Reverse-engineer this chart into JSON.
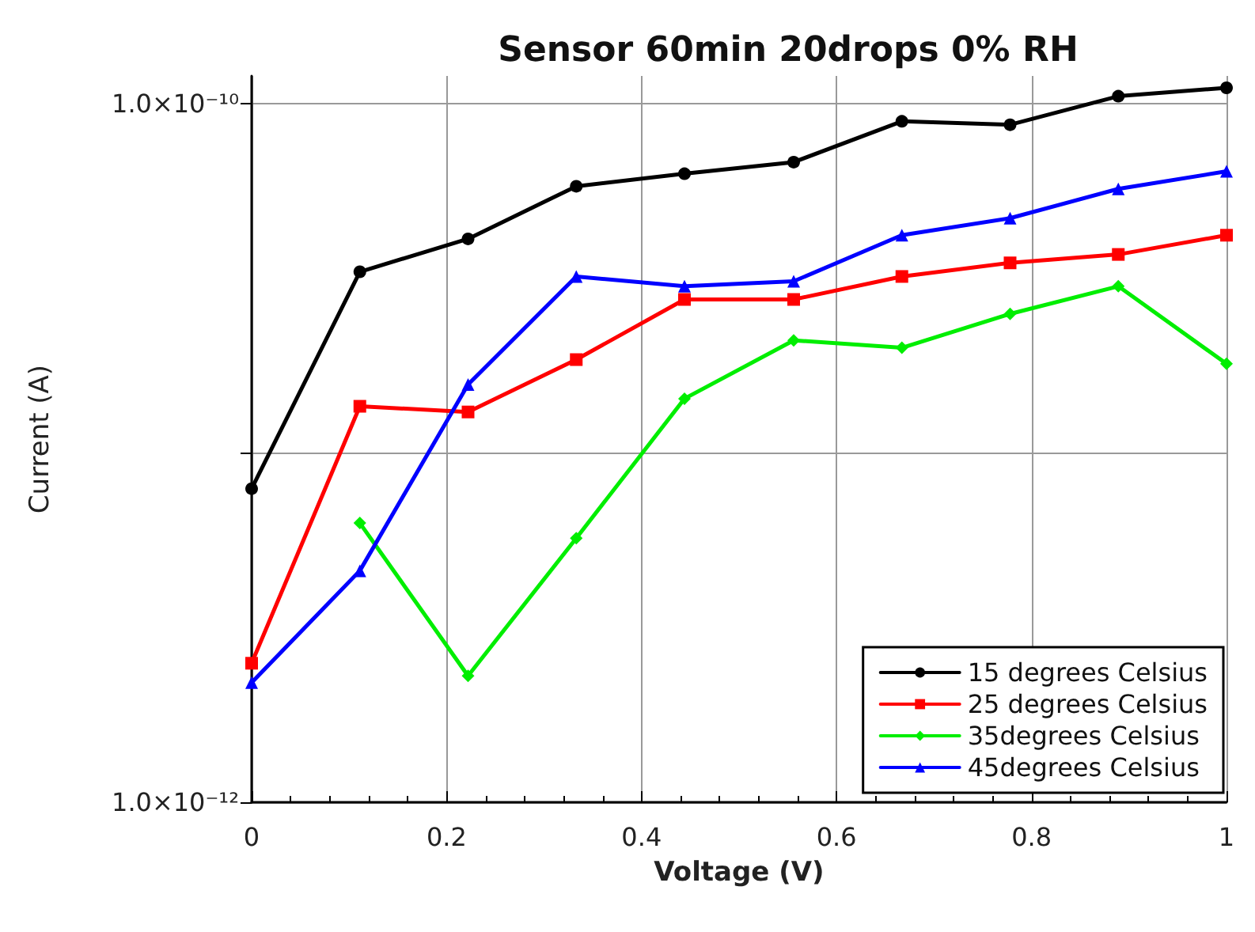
{
  "chart_data": {
    "type": "line",
    "title": "Sensor 60min 20drops 0% RH",
    "xlabel": "Voltage (V)",
    "ylabel": "Current (A)",
    "x": [
      0,
      0.111,
      0.222,
      0.333,
      0.444,
      0.556,
      0.667,
      0.778,
      0.889,
      1.0
    ],
    "series": [
      {
        "name": "15 degrees Celsius",
        "color": "#000000",
        "marker": "circle",
        "values": [
          7.9e-12,
          3.3e-11,
          4.1e-11,
          5.8e-11,
          6.3e-11,
          6.8e-11,
          8.9e-11,
          8.7e-11,
          1.05e-10,
          1.11e-10
        ]
      },
      {
        "name": "25 degrees Celsius",
        "color": "#ff0000",
        "marker": "square",
        "values": [
          2.5e-12,
          1.36e-11,
          1.31e-11,
          1.85e-11,
          2.75e-11,
          2.75e-11,
          3.2e-11,
          3.5e-11,
          3.7e-11,
          4.2e-11
        ]
      },
      {
        "name": "35degrees Celsius",
        "color": "#00ee00",
        "marker": "diamond",
        "values": [
          null,
          6.3e-12,
          2.3e-12,
          5.7e-12,
          1.43e-11,
          2.1e-11,
          2e-11,
          2.5e-11,
          3e-11,
          1.8e-11
        ]
      },
      {
        "name": "45degrees Celsius",
        "color": "#0000ff",
        "marker": "triangle",
        "values": [
          2.2e-12,
          4.6e-12,
          1.57e-11,
          3.2e-11,
          3e-11,
          3.1e-11,
          4.2e-11,
          4.7e-11,
          5.7e-11,
          6.4e-11
        ]
      }
    ],
    "xlim": [
      0,
      1
    ],
    "xticks": [
      0,
      0.2,
      0.4,
      0.6,
      0.8,
      1
    ],
    "ylim": [
      1e-12,
      1.2e-10
    ],
    "yticks": [
      {
        "value": 1e-12,
        "label": "1.0×10⁻¹²"
      },
      {
        "value": 1e-11,
        "label": null
      },
      {
        "value": 1e-10,
        "label": "1.0×10⁻¹⁰"
      }
    ],
    "log": "y",
    "grid": true,
    "legend": "bottom right",
    "line_style": "solid"
  }
}
